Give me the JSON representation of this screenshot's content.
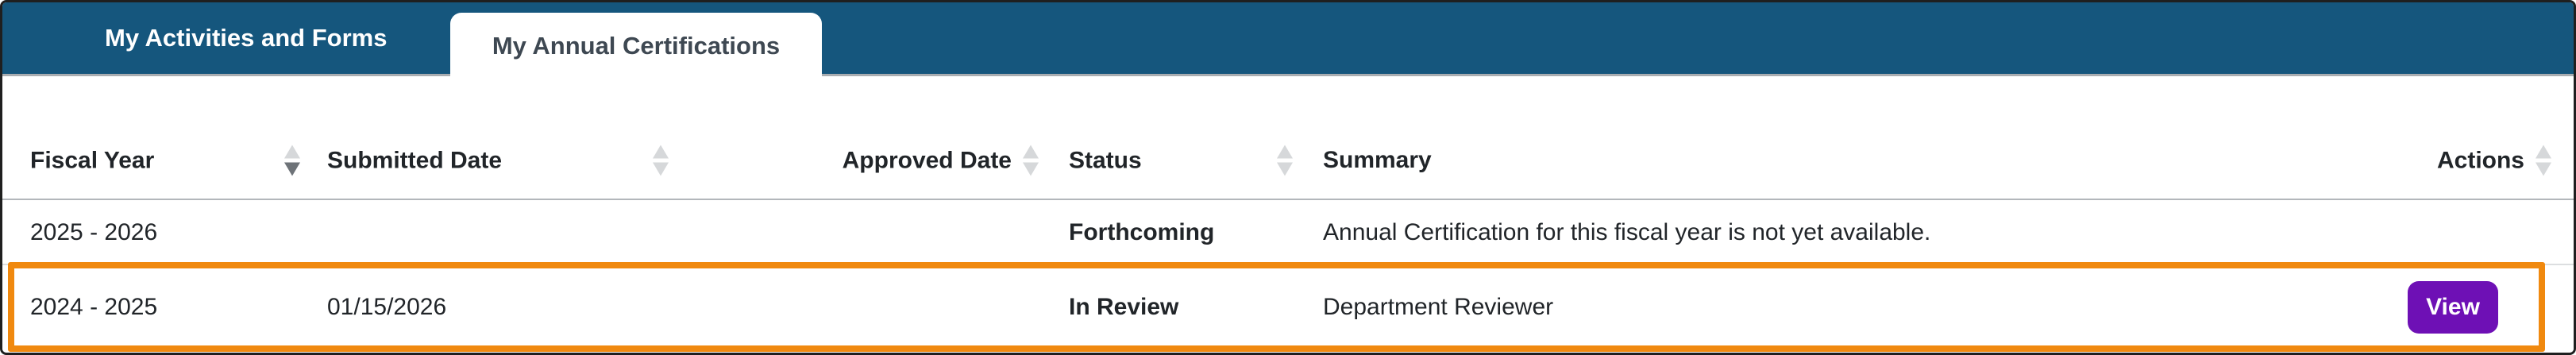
{
  "tabs": [
    {
      "label": "My Activities and Forms",
      "active": false
    },
    {
      "label": "My Annual Certifications",
      "active": true
    }
  ],
  "table": {
    "columns": [
      {
        "label": "Fiscal Year",
        "sort": "desc"
      },
      {
        "label": "Submitted Date",
        "sort": "unsorted"
      },
      {
        "label": "Approved Date",
        "sort": "unsorted"
      },
      {
        "label": "Status",
        "sort": "unsorted"
      },
      {
        "label": "Summary",
        "sort": "none"
      },
      {
        "label": "Actions",
        "sort": "unsorted"
      }
    ],
    "rows": [
      {
        "fiscal_year": "2025 - 2026",
        "submitted_date": "",
        "approved_date": "",
        "status": "Forthcoming",
        "summary": "Annual Certification for this fiscal year is not yet available.",
        "action_label": "",
        "highlighted": false
      },
      {
        "fiscal_year": "2024 - 2025",
        "submitted_date": "01/15/2026",
        "approved_date": "",
        "status": "In Review",
        "summary": "Department Reviewer",
        "action_label": "View",
        "highlighted": true
      }
    ]
  },
  "colors": {
    "header_bar": "#15567D",
    "active_tab_text": "#3E4852",
    "highlight_border": "#F0890F",
    "view_button": "#6E10B5",
    "text": "#212529",
    "sort_icon_inactive": "#d6d8da",
    "sort_icon_active": "#6e7378"
  }
}
